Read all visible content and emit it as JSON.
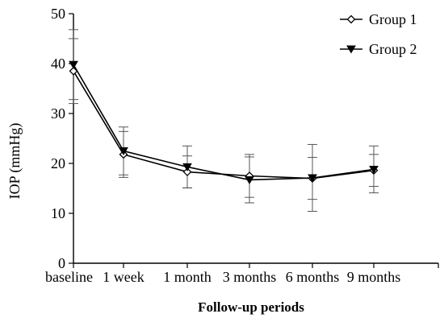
{
  "chart_data": {
    "type": "line",
    "title": "",
    "xlabel": "Follow-up periods",
    "ylabel": "IOP (mmHg)",
    "ylim": [
      0,
      50
    ],
    "yticks": [
      0,
      10,
      20,
      30,
      40,
      50
    ],
    "categories": [
      "baseline",
      "1 week",
      "1 month",
      "3 months",
      "6 months",
      "9 months"
    ],
    "grid": false,
    "legend_position": "top-right",
    "series": [
      {
        "name": "Group 1",
        "marker": "open-diamond",
        "color": "#000000",
        "values": [
          38.5,
          21.8,
          18.3,
          17.5,
          17.0,
          18.6
        ],
        "error": [
          6.5,
          4.6,
          3.2,
          4.3,
          4.2,
          3.2
        ]
      },
      {
        "name": "Group 2",
        "marker": "filled-triangle-down",
        "color": "#000000",
        "values": [
          39.8,
          22.5,
          19.3,
          16.7,
          17.1,
          18.8
        ],
        "error": [
          7.0,
          4.8,
          4.2,
          4.6,
          6.7,
          4.7
        ]
      }
    ]
  }
}
